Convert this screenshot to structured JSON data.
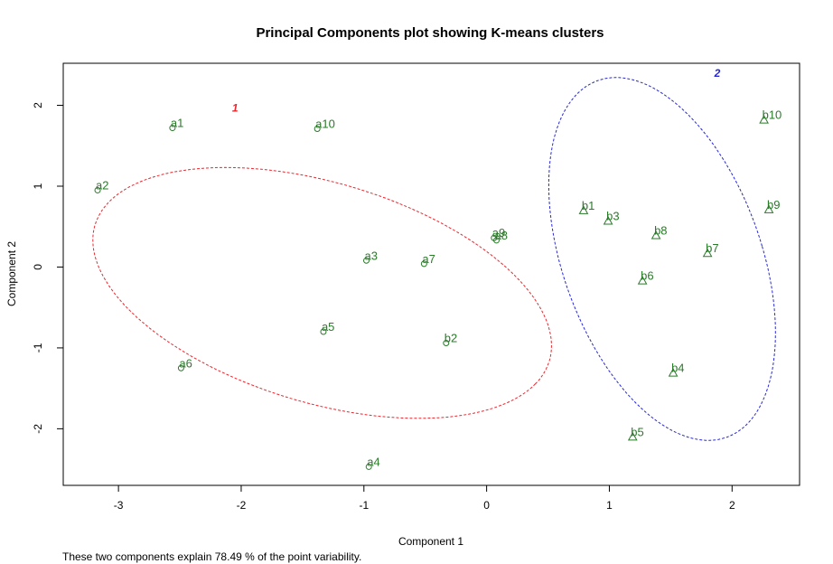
{
  "chart_data": {
    "type": "scatter",
    "title": "Principal Components plot showing K-means clusters",
    "xlabel": "Component 1",
    "ylabel": "Component 2",
    "xlim": [
      -3.45,
      2.55
    ],
    "ylim": [
      -2.7,
      2.52
    ],
    "x_ticks": [
      -3,
      -2,
      -1,
      0,
      1,
      2
    ],
    "y_ticks": [
      -2,
      -1,
      0,
      1,
      2
    ],
    "footnote": "These two components explain 78.49 % of the point variability.",
    "point_color": "#2a7a2a",
    "series": [
      {
        "marker": "circle",
        "points": [
          {
            "label": "a1",
            "x": -2.56,
            "y": 1.72
          },
          {
            "label": "a10",
            "x": -1.38,
            "y": 1.71
          },
          {
            "label": "a2",
            "x": -3.17,
            "y": 0.95
          },
          {
            "label": "a9",
            "x": 0.06,
            "y": 0.36
          },
          {
            "label": "a8",
            "x": 0.08,
            "y": 0.33
          },
          {
            "label": "a3",
            "x": -0.98,
            "y": 0.08
          },
          {
            "label": "a7",
            "x": -0.51,
            "y": 0.04
          },
          {
            "label": "a5",
            "x": -1.33,
            "y": -0.8
          },
          {
            "label": "b2",
            "x": -0.33,
            "y": -0.94
          },
          {
            "label": "a6",
            "x": -2.49,
            "y": -1.25
          },
          {
            "label": "a4",
            "x": -0.96,
            "y": -2.47
          }
        ]
      },
      {
        "marker": "triangle",
        "points": [
          {
            "label": "b10",
            "x": 2.26,
            "y": 1.82
          },
          {
            "label": "b1",
            "x": 0.79,
            "y": 0.7
          },
          {
            "label": "b9",
            "x": 2.3,
            "y": 0.71
          },
          {
            "label": "b3",
            "x": 0.99,
            "y": 0.57
          },
          {
            "label": "b8",
            "x": 1.38,
            "y": 0.39
          },
          {
            "label": "b7",
            "x": 1.8,
            "y": 0.17
          },
          {
            "label": "b6",
            "x": 1.27,
            "y": -0.17
          },
          {
            "label": "b4",
            "x": 1.52,
            "y": -1.31
          },
          {
            "label": "b5",
            "x": 1.19,
            "y": -2.1
          }
        ]
      }
    ],
    "clusters": [
      {
        "label": "1",
        "color": "#e8272e",
        "cx": -1.34,
        "cy": -0.32,
        "rx": 2.07,
        "ry": 1.27,
        "rotation_deg": -33,
        "label_x": -2.05,
        "label_y": 1.92
      },
      {
        "label": "2",
        "color": "#2828d8",
        "cx": 1.43,
        "cy": 0.1,
        "rx": 0.83,
        "ry": 2.28,
        "rotation_deg": 11,
        "label_x": 1.88,
        "label_y": 2.35
      }
    ]
  }
}
